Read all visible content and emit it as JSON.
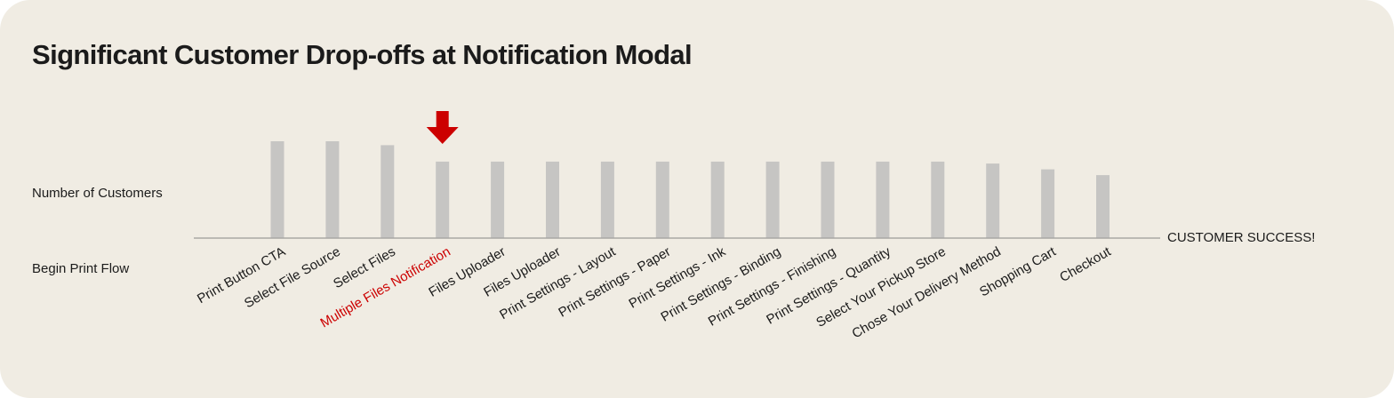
{
  "chart_data": {
    "type": "bar",
    "title": "Significant Customer Drop-offs at Notification Modal",
    "ylabel": "Number of Customers",
    "start_label": "Begin Print Flow",
    "end_label": "CUSTOMER SUCCESS!",
    "categories": [
      "Print Button CTA",
      "Select File Source",
      "Select Files",
      "Multiple Files Notification",
      "Files Uploader",
      "Files Uploader",
      "Print Settings - Layout",
      "Print Settings - Paper",
      "Print Settings - Ink",
      "Print Settings - Binding",
      "Print Settings - Finishing",
      "Print Settings - Quantity",
      "Select Your Pickup Store",
      "Chose Your Delivery Method",
      "Shopping Cart",
      "Checkout"
    ],
    "values": [
      100,
      100,
      96,
      79,
      79,
      79,
      79,
      79,
      79,
      79,
      79,
      79,
      79,
      77,
      71,
      65
    ],
    "ylim": [
      0,
      100
    ],
    "highlight_index": 3,
    "grid": false,
    "legend": "none",
    "colors": {
      "bar": "#c6c5c3",
      "axis": "#a9a8a5",
      "highlight": "#cc0000",
      "text": "#1b1b1b"
    },
    "annotations": [
      {
        "type": "arrow-down",
        "category_index": 3,
        "color": "#cc0000"
      }
    ]
  }
}
